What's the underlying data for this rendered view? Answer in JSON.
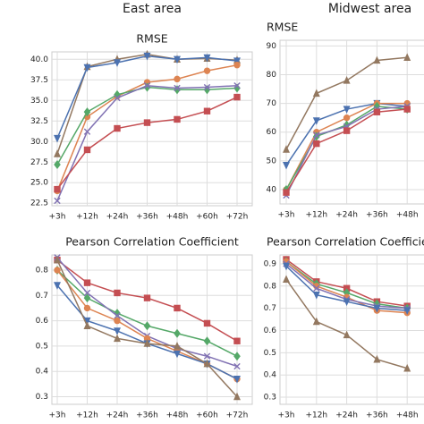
{
  "chart_data": [
    {
      "type": "line",
      "suptitle": "East area",
      "title": "RMSE",
      "categories": [
        "+3h",
        "+12h",
        "+24h",
        "+36h",
        "+48h",
        "+60h",
        "+72h"
      ],
      "ylim": [
        22.2,
        40.9
      ],
      "yticks": [
        {
          "value": 22.5,
          "label": "22.5"
        },
        {
          "value": 25,
          "label": "25.0"
        },
        {
          "value": 27.5,
          "label": "27.5"
        },
        {
          "value": 30,
          "label": "30.0"
        },
        {
          "value": 32.5,
          "label": "32.5"
        },
        {
          "value": 35,
          "label": "35.0"
        },
        {
          "value": 37.5,
          "label": "37.5"
        },
        {
          "value": 40,
          "label": "40.0"
        }
      ],
      "grid": true,
      "series": [
        {
          "color": "#937860",
          "marker": "^",
          "values": [
            28.5,
            39.1,
            40.0,
            40.6,
            40.0,
            40.1,
            39.9
          ]
        },
        {
          "color": "#4c72b0",
          "marker": "v",
          "values": [
            30.4,
            39.0,
            39.6,
            40.4,
            40.0,
            40.2,
            39.8
          ]
        },
        {
          "color": "#dd8452",
          "marker": "o",
          "values": [
            24.0,
            33.0,
            35.5,
            37.2,
            37.6,
            38.6,
            39.3
          ]
        },
        {
          "color": "#55a868",
          "marker": "D",
          "values": [
            27.2,
            33.6,
            35.7,
            36.6,
            36.3,
            36.3,
            36.5
          ]
        },
        {
          "color": "#8172b3",
          "marker": "x",
          "values": [
            22.8,
            31.2,
            35.3,
            36.8,
            36.5,
            36.6,
            36.8
          ]
        },
        {
          "color": "#c44e52",
          "marker": "s",
          "values": [
            24.2,
            29.0,
            31.6,
            32.3,
            32.7,
            33.7,
            35.4
          ]
        }
      ]
    },
    {
      "type": "line",
      "title": "Pearson Correlation Coefficient",
      "categories": [
        "+3h",
        "+12h",
        "+24h",
        "+36h",
        "+48h",
        "+60h",
        "+72h"
      ],
      "ylim": [
        0.27,
        0.86
      ],
      "yticks": [
        0.3,
        0.4,
        0.5,
        0.6,
        0.7,
        0.8
      ],
      "grid": true,
      "series": [
        {
          "color": "#c44e52",
          "marker": "s",
          "values": [
            0.84,
            0.75,
            0.71,
            0.69,
            0.65,
            0.59,
            0.52
          ]
        },
        {
          "color": "#55a868",
          "marker": "D",
          "values": [
            0.8,
            0.69,
            0.63,
            0.58,
            0.55,
            0.52,
            0.46
          ]
        },
        {
          "color": "#8172b3",
          "marker": "x",
          "values": [
            0.85,
            0.71,
            0.62,
            0.54,
            0.49,
            0.46,
            0.42
          ]
        },
        {
          "color": "#dd8452",
          "marker": "o",
          "values": [
            0.8,
            0.65,
            0.6,
            0.53,
            0.48,
            0.43,
            0.37
          ]
        },
        {
          "color": "#4c72b0",
          "marker": "v",
          "values": [
            0.74,
            0.6,
            0.56,
            0.51,
            0.47,
            0.43,
            0.37
          ]
        },
        {
          "color": "#937860",
          "marker": "^",
          "values": [
            0.84,
            0.58,
            0.53,
            0.51,
            0.5,
            0.43,
            0.3
          ]
        }
      ]
    },
    {
      "type": "line",
      "suptitle": "Midwest area",
      "title": "RMSE",
      "categories": [
        "+3h",
        "+12h",
        "+24h",
        "+36h",
        "+48h"
      ],
      "ylim": [
        35,
        92
      ],
      "yticks": [
        40,
        50,
        60,
        70,
        80,
        90
      ],
      "grid": true,
      "series": [
        {
          "color": "#937860",
          "marker": "^",
          "values": [
            54,
            73.5,
            78,
            85,
            86
          ]
        },
        {
          "color": "#4c72b0",
          "marker": "v",
          "values": [
            48.5,
            64,
            68,
            70,
            69
          ]
        },
        {
          "color": "#dd8452",
          "marker": "o",
          "values": [
            40,
            60,
            65,
            70,
            70
          ]
        },
        {
          "color": "#55a868",
          "marker": "D",
          "values": [
            40,
            58.5,
            62.5,
            69,
            68
          ]
        },
        {
          "color": "#8172b3",
          "marker": "x",
          "values": [
            38,
            59,
            62,
            68,
            69
          ]
        },
        {
          "color": "#c44e52",
          "marker": "s",
          "values": [
            39,
            56,
            60.5,
            67,
            68
          ]
        }
      ]
    },
    {
      "type": "line",
      "title": "Pearson Correlation Coefficient",
      "categories": [
        "+3h",
        "+12h",
        "+24h",
        "+36h",
        "+48h"
      ],
      "ylim": [
        0.268,
        0.94
      ],
      "yticks": [
        0.3,
        0.4,
        0.5,
        0.6,
        0.7,
        0.8,
        0.9
      ],
      "grid": true,
      "series": [
        {
          "color": "#c44e52",
          "marker": "s",
          "values": [
            0.92,
            0.82,
            0.79,
            0.73,
            0.71
          ]
        },
        {
          "color": "#55a868",
          "marker": "D",
          "values": [
            0.91,
            0.81,
            0.77,
            0.72,
            0.7
          ]
        },
        {
          "color": "#dd8452",
          "marker": "o",
          "values": [
            0.91,
            0.8,
            0.75,
            0.69,
            0.68
          ]
        },
        {
          "color": "#8172b3",
          "marker": "x",
          "values": [
            0.9,
            0.79,
            0.74,
            0.71,
            0.7
          ]
        },
        {
          "color": "#4c72b0",
          "marker": "v",
          "values": [
            0.89,
            0.76,
            0.73,
            0.7,
            0.69
          ]
        },
        {
          "color": "#937860",
          "marker": "^",
          "values": [
            0.83,
            0.64,
            0.58,
            0.47,
            0.43
          ]
        }
      ]
    }
  ]
}
